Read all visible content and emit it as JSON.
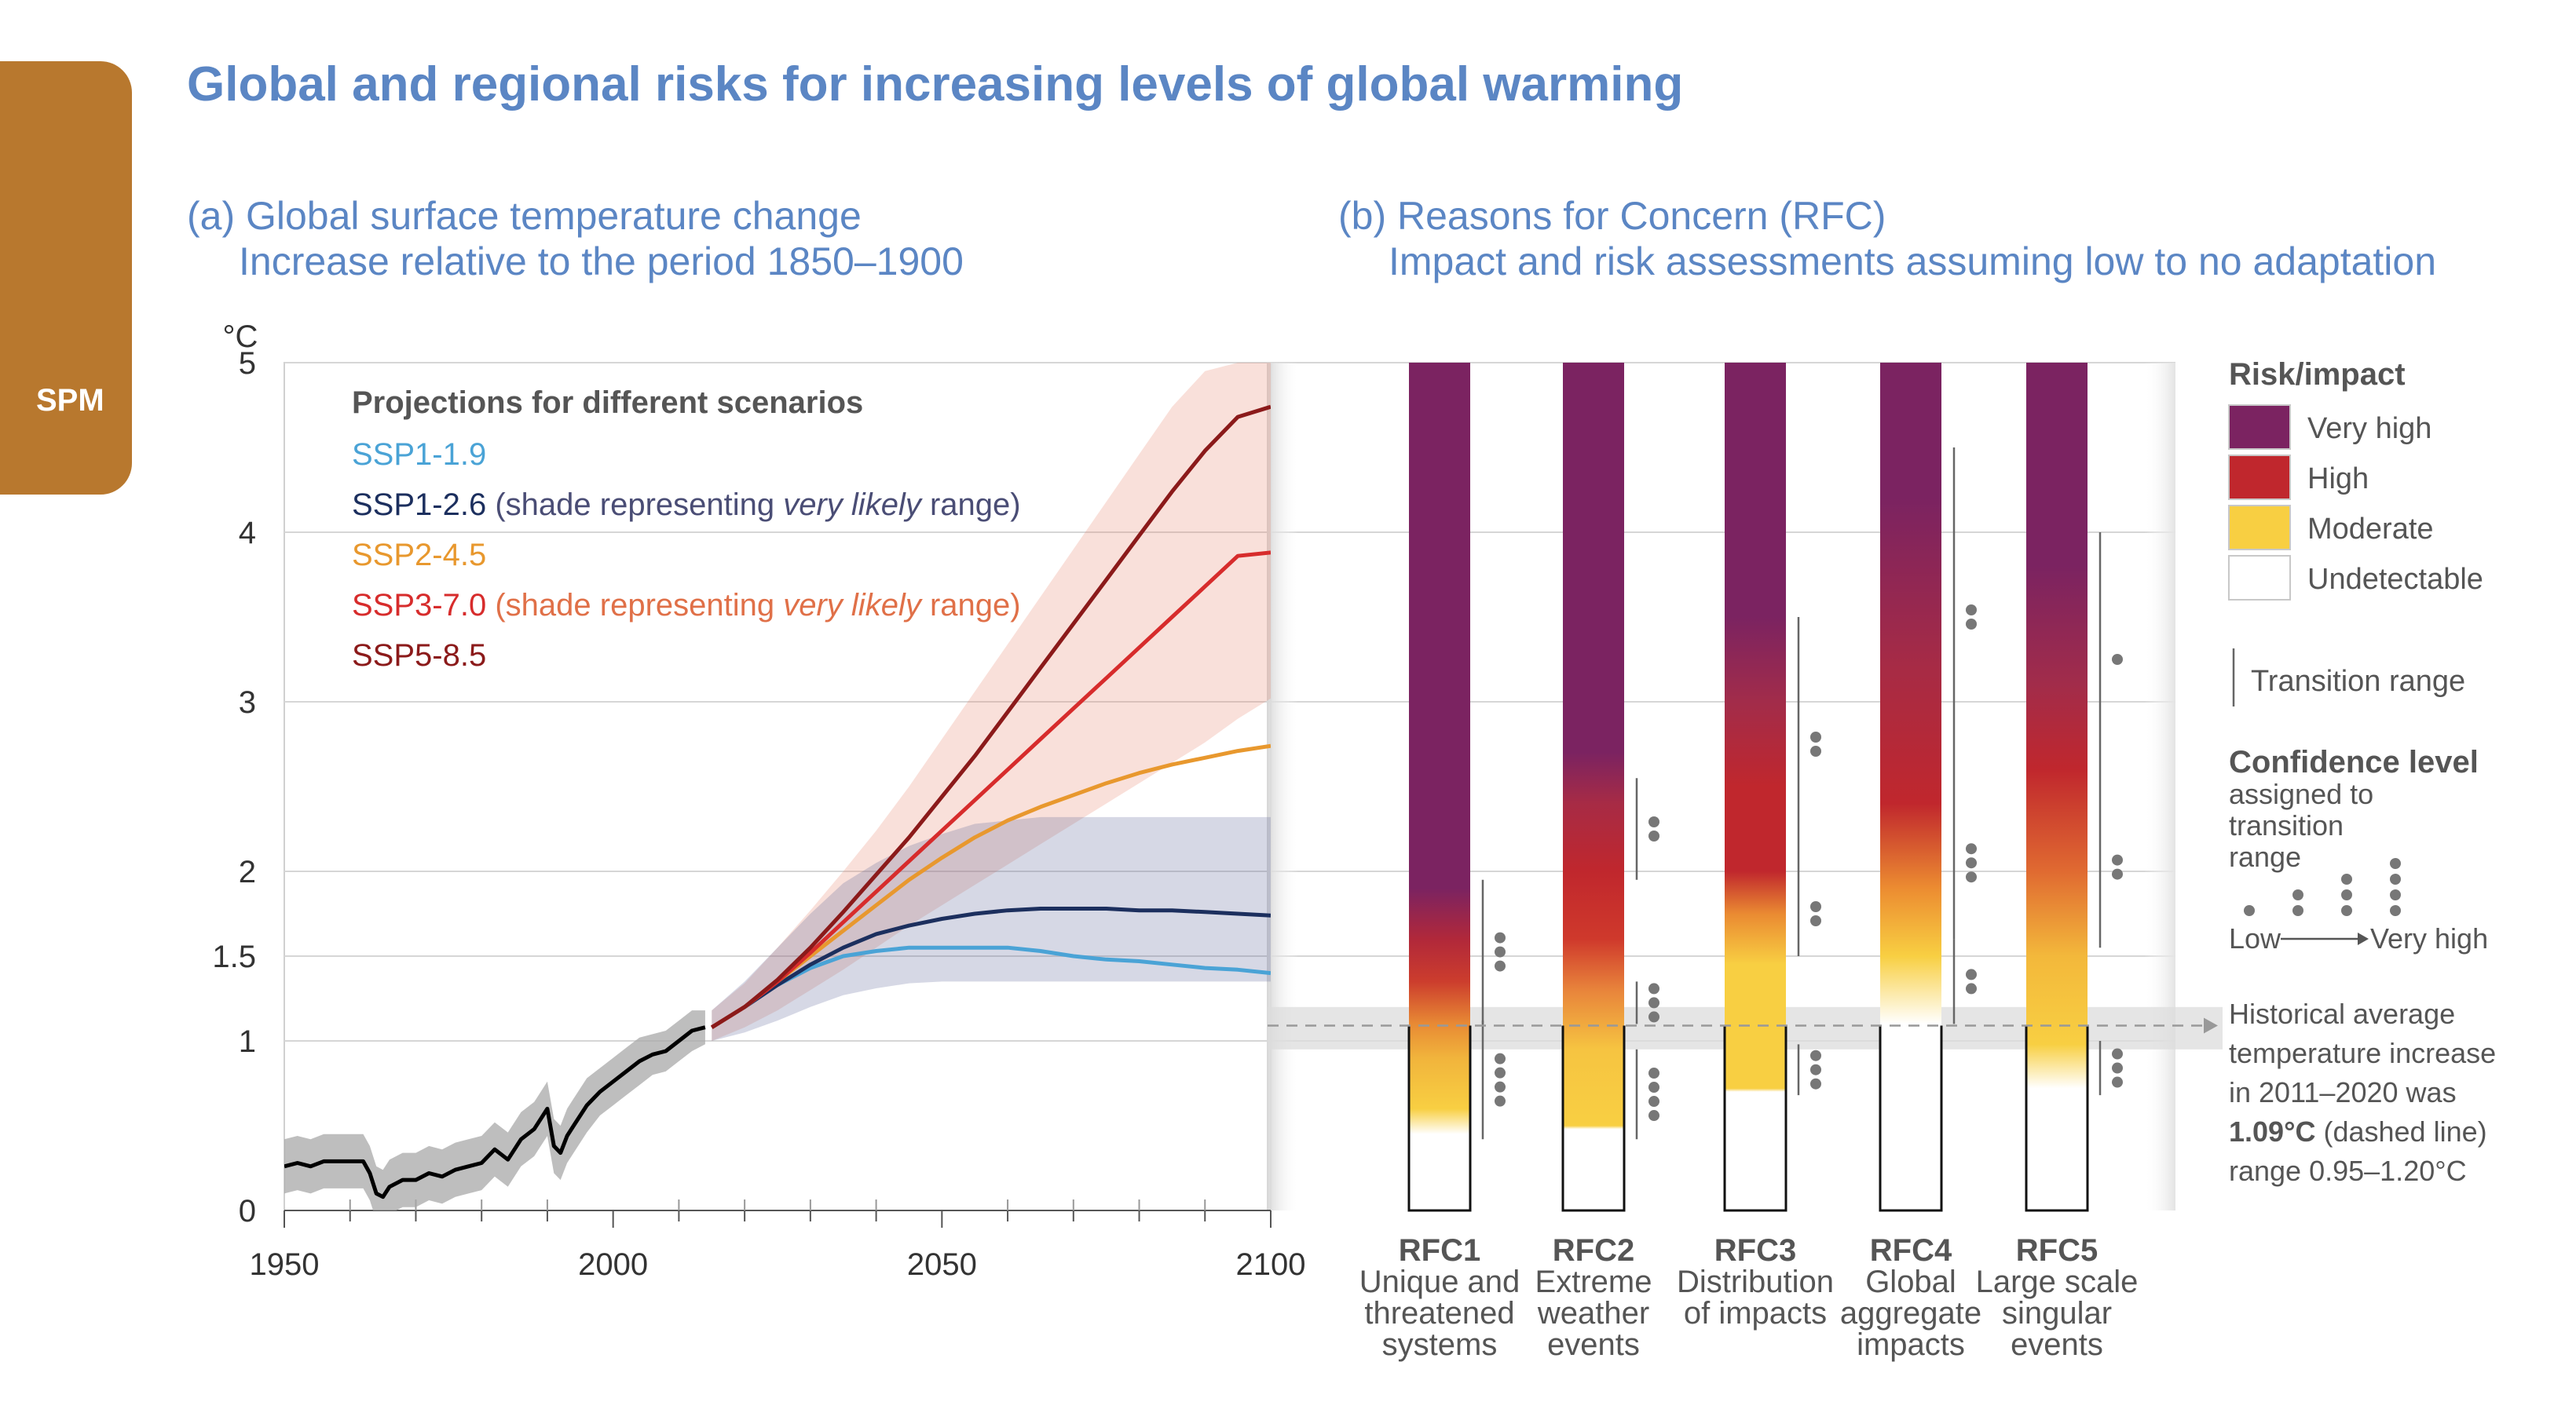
{
  "sidebar": {
    "tab_label": "SPM"
  },
  "title": "Global and regional risks for increasing levels of global warming",
  "panel_a": {
    "title": "(a) Global surface temperature change",
    "subtitle": "Increase relative to the period 1850–1900"
  },
  "panel_b": {
    "title": "(b) Reasons for Concern (RFC)",
    "subtitle": "Impact and risk assessments assuming low to no adaptation"
  },
  "chart_data": [
    {
      "type": "line",
      "ylabel": "°C",
      "xlim": [
        1950,
        2100
      ],
      "ylim": [
        0,
        5
      ],
      "yticks": [
        "0",
        "1",
        "1.5",
        "2",
        "3",
        "4",
        "5"
      ],
      "ytick_values": [
        0,
        1,
        1.5,
        2,
        3,
        4,
        5
      ],
      "xticks": [
        "1950",
        "2000",
        "2050",
        "2100"
      ],
      "xtick_values": [
        1950,
        2000,
        2050,
        2100
      ],
      "legend_title": "Projections for different scenarios",
      "legend": [
        {
          "name": "SSP1-1.9",
          "color": "#4aa3d6",
          "note": ""
        },
        {
          "name": "SSP1-2.6",
          "color": "#1c2f5e",
          "note": "(shade representing ",
          "italic": "very likely",
          "note_end": " range)",
          "note_color": "#4a4d75"
        },
        {
          "name": "SSP2-4.5",
          "color": "#e8982e",
          "note": ""
        },
        {
          "name": "SSP3-7.0",
          "color": "#d72c2c",
          "note": "(shade representing ",
          "italic": "very likely",
          "note_end": " range)",
          "note_color": "#e07048"
        },
        {
          "name": "SSP5-8.5",
          "color": "#8b1a1a",
          "note": ""
        }
      ],
      "historical": {
        "color": "#000000",
        "x": [
          1950,
          1952,
          1954,
          1956,
          1958,
          1960,
          1962,
          1963,
          1964,
          1965,
          1966,
          1968,
          1970,
          1972,
          1974,
          1976,
          1978,
          1980,
          1982,
          1984,
          1986,
          1988,
          1990,
          1991,
          1992,
          1993,
          1994,
          1996,
          1998,
          2000,
          2002,
          2004,
          2006,
          2008,
          2010,
          2012,
          2014
        ],
        "y": [
          0.26,
          0.28,
          0.26,
          0.29,
          0.29,
          0.29,
          0.29,
          0.22,
          0.1,
          0.08,
          0.14,
          0.18,
          0.18,
          0.22,
          0.2,
          0.24,
          0.26,
          0.28,
          0.36,
          0.3,
          0.42,
          0.48,
          0.6,
          0.38,
          0.34,
          0.44,
          0.5,
          0.62,
          0.7,
          0.76,
          0.82,
          0.88,
          0.92,
          0.94,
          1.0,
          1.06,
          1.08
        ],
        "range_low": [
          0.1,
          0.12,
          0.1,
          0.13,
          0.13,
          0.13,
          0.13,
          0.06,
          -0.06,
          -0.08,
          -0.02,
          0.02,
          0.02,
          0.06,
          0.04,
          0.08,
          0.1,
          0.12,
          0.2,
          0.14,
          0.26,
          0.32,
          0.44,
          0.22,
          0.18,
          0.28,
          0.34,
          0.46,
          0.56,
          0.62,
          0.68,
          0.74,
          0.8,
          0.82,
          0.88,
          0.94,
          0.98
        ],
        "range_high": [
          0.42,
          0.44,
          0.42,
          0.45,
          0.45,
          0.45,
          0.45,
          0.38,
          0.26,
          0.24,
          0.3,
          0.34,
          0.34,
          0.38,
          0.36,
          0.4,
          0.42,
          0.44,
          0.52,
          0.46,
          0.58,
          0.64,
          0.76,
          0.54,
          0.5,
          0.6,
          0.66,
          0.78,
          0.84,
          0.9,
          0.96,
          1.02,
          1.04,
          1.06,
          1.12,
          1.18,
          1.18
        ]
      },
      "series": [
        {
          "name": "SSP1-1.9",
          "color": "#4aa3d6",
          "x": [
            2015,
            2020,
            2025,
            2030,
            2035,
            2040,
            2045,
            2050,
            2055,
            2060,
            2065,
            2070,
            2075,
            2080,
            2085,
            2090,
            2095,
            2100
          ],
          "y": [
            1.08,
            1.2,
            1.33,
            1.43,
            1.5,
            1.53,
            1.55,
            1.55,
            1.55,
            1.55,
            1.53,
            1.5,
            1.48,
            1.47,
            1.45,
            1.43,
            1.42,
            1.4
          ]
        },
        {
          "name": "SSP1-2.6",
          "color": "#1c2f5e",
          "x": [
            2015,
            2020,
            2025,
            2030,
            2035,
            2040,
            2045,
            2050,
            2055,
            2060,
            2065,
            2070,
            2075,
            2080,
            2085,
            2090,
            2095,
            2100
          ],
          "y": [
            1.08,
            1.2,
            1.33,
            1.45,
            1.55,
            1.63,
            1.68,
            1.72,
            1.75,
            1.77,
            1.78,
            1.78,
            1.78,
            1.77,
            1.77,
            1.76,
            1.75,
            1.74
          ],
          "range_low": [
            1.0,
            1.05,
            1.12,
            1.2,
            1.27,
            1.31,
            1.34,
            1.35,
            1.35,
            1.35,
            1.35,
            1.35,
            1.35,
            1.35,
            1.35,
            1.35,
            1.35,
            1.35
          ],
          "range_high": [
            1.18,
            1.35,
            1.55,
            1.75,
            1.93,
            2.05,
            2.15,
            2.22,
            2.28,
            2.3,
            2.32,
            2.32,
            2.32,
            2.32,
            2.32,
            2.32,
            2.32,
            2.32
          ]
        },
        {
          "name": "SSP2-4.5",
          "color": "#e8982e",
          "x": [
            2015,
            2020,
            2025,
            2030,
            2035,
            2040,
            2045,
            2050,
            2055,
            2060,
            2065,
            2070,
            2075,
            2080,
            2085,
            2090,
            2095,
            2100
          ],
          "y": [
            1.08,
            1.2,
            1.35,
            1.5,
            1.65,
            1.8,
            1.95,
            2.08,
            2.2,
            2.3,
            2.38,
            2.45,
            2.52,
            2.58,
            2.63,
            2.67,
            2.71,
            2.74
          ]
        },
        {
          "name": "SSP3-7.0",
          "color": "#d72c2c",
          "x": [
            2015,
            2020,
            2025,
            2030,
            2035,
            2040,
            2045,
            2050,
            2055,
            2060,
            2065,
            2070,
            2075,
            2080,
            2085,
            2090,
            2095,
            2100
          ],
          "y": [
            1.08,
            1.2,
            1.35,
            1.52,
            1.7,
            1.88,
            2.06,
            2.24,
            2.42,
            2.6,
            2.78,
            2.96,
            3.14,
            3.32,
            3.5,
            3.68,
            3.86,
            3.88
          ],
          "range_low": [
            1.0,
            1.08,
            1.18,
            1.3,
            1.42,
            1.55,
            1.68,
            1.8,
            1.92,
            2.04,
            2.16,
            2.28,
            2.4,
            2.52,
            2.64,
            2.76,
            2.9,
            3.02
          ],
          "range_high": [
            1.18,
            1.34,
            1.55,
            1.77,
            2.0,
            2.24,
            2.5,
            2.78,
            3.06,
            3.34,
            3.62,
            3.9,
            4.18,
            4.46,
            4.74,
            4.95,
            5.0,
            5.0
          ]
        },
        {
          "name": "SSP5-8.5",
          "color": "#8b1a1a",
          "x": [
            2015,
            2020,
            2025,
            2030,
            2035,
            2040,
            2045,
            2050,
            2055,
            2060,
            2065,
            2070,
            2075,
            2080,
            2085,
            2090,
            2095,
            2100
          ],
          "y": [
            1.08,
            1.2,
            1.36,
            1.55,
            1.76,
            1.98,
            2.2,
            2.44,
            2.68,
            2.94,
            3.2,
            3.46,
            3.72,
            3.98,
            4.24,
            4.48,
            4.68,
            4.74
          ]
        }
      ]
    },
    {
      "type": "heatmap",
      "ylim": [
        0,
        5
      ],
      "categories": [
        {
          "code": "RFC1",
          "lines": [
            "Unique and",
            "threatened",
            "systems"
          ]
        },
        {
          "code": "RFC2",
          "lines": [
            "Extreme",
            "weather",
            "events"
          ]
        },
        {
          "code": "RFC3",
          "lines": [
            "Distribution",
            "of impacts"
          ]
        },
        {
          "code": "RFC4",
          "lines": [
            "Global",
            "aggregate",
            "impacts"
          ]
        },
        {
          "code": "RFC5",
          "lines": [
            "Large scale",
            "singular",
            "events"
          ]
        }
      ],
      "colors": {
        "very_high": "#7b2361",
        "high": "#c0272d",
        "moderate": "#f8cf42",
        "undetectable": "#ffffff"
      },
      "bars": [
        {
          "stops": [
            [
              0.0,
              "#ffffff"
            ],
            [
              0.45,
              "#ffffff"
            ],
            [
              0.6,
              "#f8cf42"
            ],
            [
              0.9,
              "#f1b43c"
            ],
            [
              1.1,
              "#e88a34"
            ],
            [
              1.35,
              "#cc3d2d"
            ],
            [
              1.6,
              "#b1283a"
            ],
            [
              1.9,
              "#7b2361"
            ],
            [
              5.0,
              "#7b2361"
            ]
          ],
          "transitions": [
            {
              "from": 0.42,
              "to": 1.12,
              "dots": 4
            },
            {
              "from": 1.1,
              "to": 1.95,
              "dots": 3
            }
          ]
        },
        {
          "stops": [
            [
              0.0,
              "#ffffff"
            ],
            [
              0.48,
              "#ffffff"
            ],
            [
              0.5,
              "#f8cf42"
            ],
            [
              0.95,
              "#f6c441"
            ],
            [
              1.3,
              "#e8843b"
            ],
            [
              1.6,
              "#cf392c"
            ],
            [
              2.0,
              "#c0272d"
            ],
            [
              2.4,
              "#a72b45"
            ],
            [
              2.7,
              "#7b2361"
            ],
            [
              5.0,
              "#7b2361"
            ]
          ],
          "transitions": [
            {
              "from": 0.42,
              "to": 0.95,
              "dots": 4
            },
            {
              "from": 1.1,
              "to": 1.35,
              "dots": 3
            },
            {
              "from": 1.95,
              "to": 2.55,
              "dots": 2
            }
          ]
        },
        {
          "stops": [
            [
              0.0,
              "#ffffff"
            ],
            [
              0.7,
              "#ffffff"
            ],
            [
              0.72,
              "#f8cf42"
            ],
            [
              1.45,
              "#f8cf42"
            ],
            [
              1.75,
              "#ea8a32"
            ],
            [
              2.0,
              "#c0272d"
            ],
            [
              2.5,
              "#c0272d"
            ],
            [
              3.0,
              "#a22c4a"
            ],
            [
              3.5,
              "#7b2361"
            ],
            [
              5.0,
              "#7b2361"
            ]
          ],
          "transitions": [
            {
              "from": 0.68,
              "to": 0.98,
              "dots": 3
            },
            {
              "from": 1.5,
              "to": 2.0,
              "dots": 2
            },
            {
              "from": 2.0,
              "to": 3.5,
              "dots": 2
            }
          ]
        },
        {
          "stops": [
            [
              0.0,
              "#ffffff"
            ],
            [
              1.1,
              "#ffffff"
            ],
            [
              1.5,
              "#f8cf42"
            ],
            [
              1.9,
              "#ec8c31"
            ],
            [
              2.4,
              "#c0272d"
            ],
            [
              3.2,
              "#a72b45"
            ],
            [
              4.2,
              "#7b2361"
            ],
            [
              5.0,
              "#7b2361"
            ]
          ],
          "transitions": [
            {
              "from": 1.1,
              "to": 1.6,
              "dots": 2
            },
            {
              "from": 1.6,
              "to": 2.5,
              "dots": 3
            },
            {
              "from": 2.5,
              "to": 4.5,
              "dots": 2
            }
          ]
        },
        {
          "stops": [
            [
              0.0,
              "#ffffff"
            ],
            [
              0.72,
              "#ffffff"
            ],
            [
              0.98,
              "#f8cf42"
            ],
            [
              1.5,
              "#f3b83b"
            ],
            [
              2.0,
              "#e06a31"
            ],
            [
              2.6,
              "#c0272d"
            ],
            [
              3.1,
              "#a22c4a"
            ],
            [
              3.8,
              "#7b2361"
            ],
            [
              5.0,
              "#7b2361"
            ]
          ],
          "transitions": [
            {
              "from": 0.68,
              "to": 1.0,
              "dots": 3
            },
            {
              "from": 1.55,
              "to": 2.5,
              "dots": 2
            },
            {
              "from": 2.5,
              "to": 4.0,
              "dots": 1
            }
          ]
        }
      ],
      "historical_band": {
        "low": 0.95,
        "high": 1.2,
        "mean": 1.09
      },
      "legend": {
        "title": "Risk/impact",
        "items": [
          {
            "label": "Very high",
            "color": "#7b2361"
          },
          {
            "label": "High",
            "color": "#c0272d"
          },
          {
            "label": "Moderate",
            "color": "#f8cf42"
          },
          {
            "label": "Undetectable",
            "color": "#ffffff"
          }
        ],
        "transition_label": "Transition range",
        "confidence_title": "Confidence level",
        "confidence_sub": [
          "assigned to",
          "transition",
          "range"
        ],
        "confidence_low": "Low",
        "confidence_high": "Very high",
        "historical_note": [
          "Historical average",
          "temperature increase",
          "in 2011–2020 was"
        ],
        "historical_value": "1.09°C",
        "historical_value_suffix": " (dashed line)",
        "historical_range": "range 0.95–1.20°C"
      }
    }
  ]
}
